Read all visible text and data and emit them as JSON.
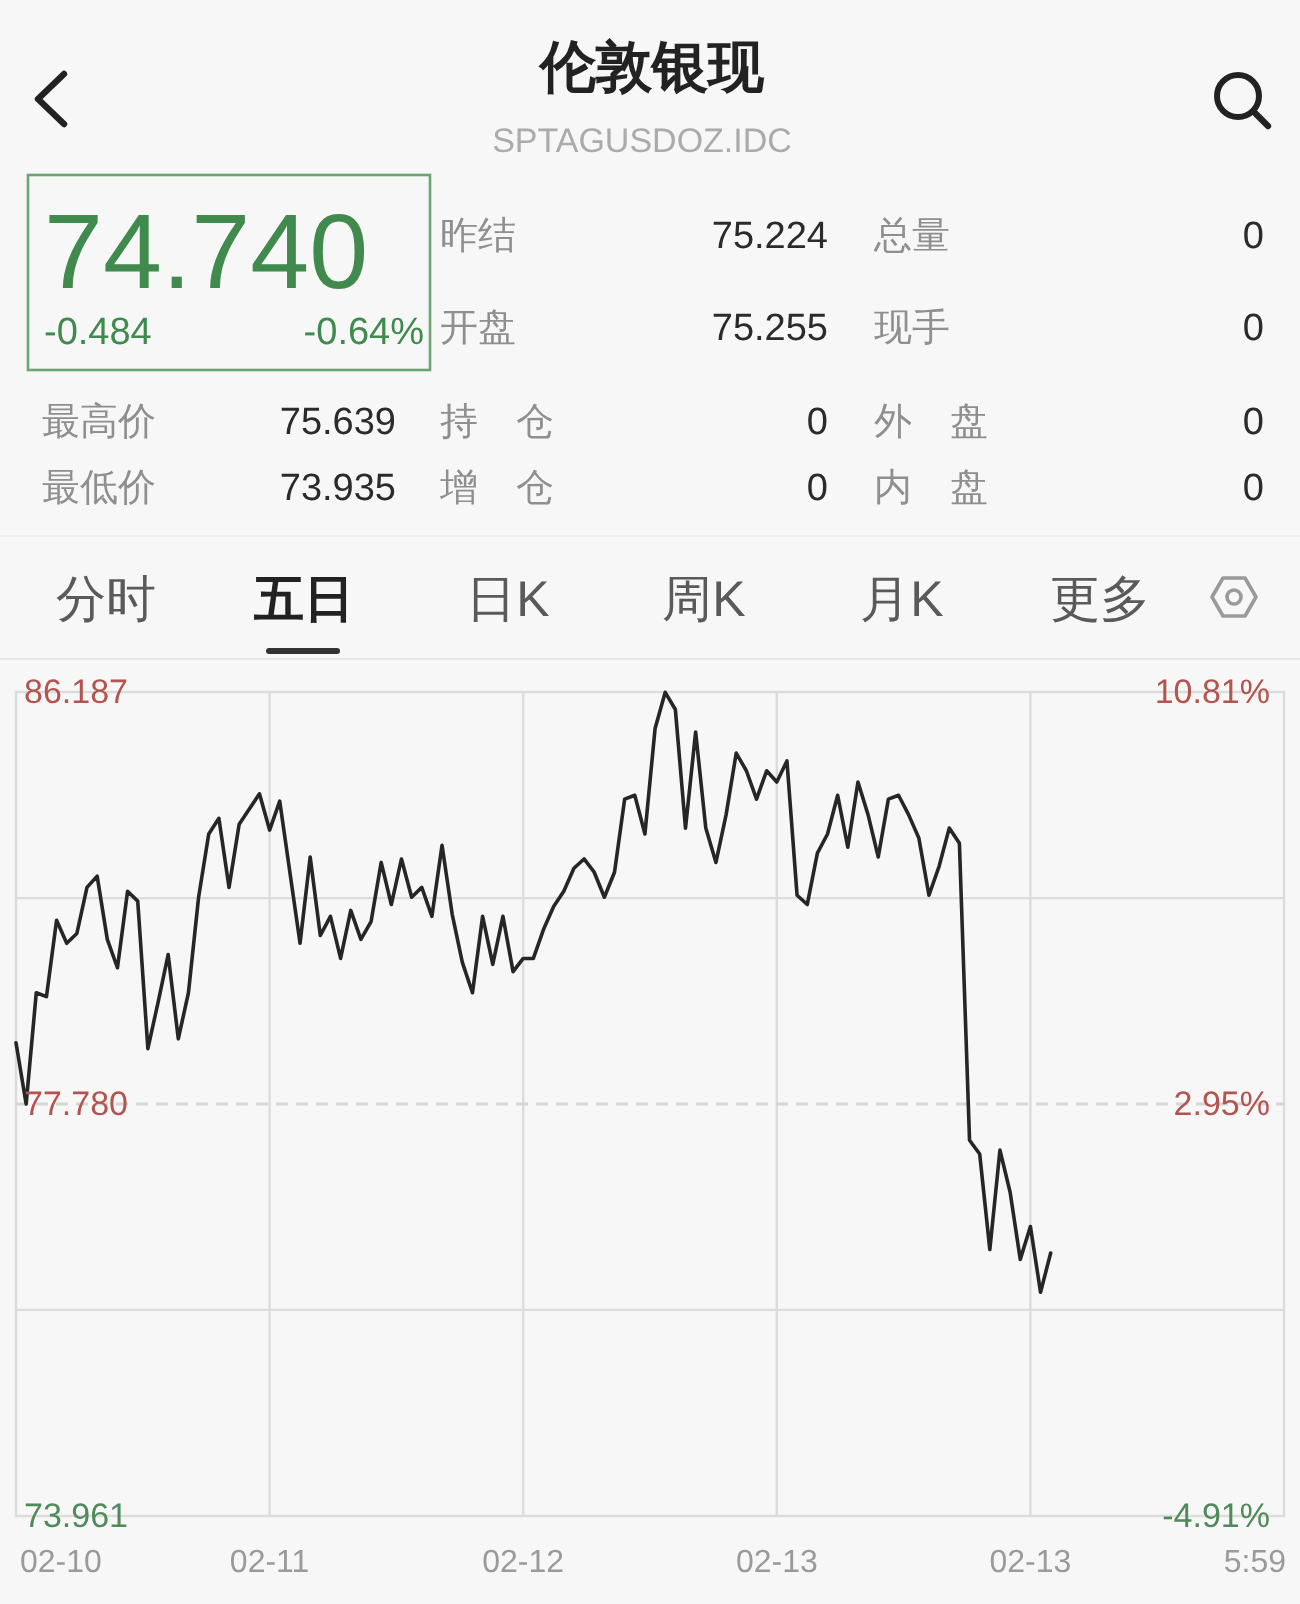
{
  "chart_data": [
    {
      "type": "other",
      "title": "伦敦银现",
      "subtitle": "SPTAGUSDOZ.IDC",
      "annotations": [
        "74.740",
        "-0.484",
        "-0.64%",
        "昨结",
        "75.224",
        "总量",
        "0",
        "开盘",
        "75.255",
        "现手",
        "0",
        "最高价",
        "75.639",
        "持　仓",
        "0",
        "外　盘",
        "0",
        "最低价",
        "73.935",
        "增　仓",
        "0",
        "内　盘",
        "0",
        "分时",
        "五日",
        "日K",
        "周K",
        "月K",
        "更多"
      ]
    },
    {
      "type": "line",
      "categories": [
        null,
        null,
        null,
        null,
        null,
        null,
        null,
        null,
        null,
        null,
        null,
        null,
        null,
        null,
        null,
        null,
        null,
        null,
        null,
        null,
        null,
        null,
        null,
        null,
        null,
        "02-11",
        null,
        null,
        null,
        null,
        null,
        null,
        null,
        null,
        null,
        null,
        null,
        null,
        null,
        null,
        null,
        null,
        null,
        null,
        null,
        null,
        null,
        null,
        null,
        null,
        "02-12",
        null,
        null,
        null,
        null,
        null,
        null,
        null,
        null,
        null,
        null,
        null,
        null,
        null,
        null,
        null,
        null,
        null,
        null,
        null,
        null,
        null,
        null,
        null,
        null,
        "02-13",
        null,
        null,
        null,
        null,
        null,
        null,
        null,
        null,
        null,
        null,
        null,
        null,
        null,
        null,
        null,
        null,
        null,
        null,
        null,
        null,
        null,
        null,
        null,
        null,
        "02-13",
        null,
        null,
        null,
        null,
        null,
        null,
        null,
        null,
        null,
        null,
        null,
        null,
        null,
        null,
        null,
        null,
        null,
        null,
        null,
        null,
        null,
        null,
        null,
        null,
        null
      ],
      "series": [
        {
          "color": "#262626",
          "values": [
            79.03,
            77.78,
            80.05,
            79.97,
            81.53,
            81.06,
            81.26,
            82.2,
            82.43,
            81.14,
            80.56,
            82.12,
            81.92,
            78.91,
            79.85,
            80.83,
            79.11,
            80.05,
            82.0,
            83.29,
            83.61,
            82.2,
            83.49,
            83.8,
            84.11,
            83.37,
            83.96,
            82.51,
            81.06,
            82.82,
            81.22,
            81.61,
            80.75,
            81.73,
            81.14,
            81.5,
            82.71,
            81.85,
            82.78,
            82.0,
            82.2,
            81.61,
            83.06,
            81.65,
            80.67,
            80.05,
            81.61,
            80.63,
            81.61,
            80.48,
            80.75,
            80.75,
            81.34,
            81.81,
            82.12,
            82.59,
            82.78,
            82.51,
            82.0,
            82.51,
            84.0,
            84.08,
            83.29,
            85.44,
            86.18,
            85.83,
            83.41,
            85.37,
            83.41,
            82.71,
            83.68,
            84.94,
            84.58,
            84.0,
            84.58,
            84.35,
            84.78,
            82.04,
            81.85,
            82.9,
            83.29,
            84.08,
            83.02,
            84.35,
            83.68,
            82.82,
            84.0,
            84.08,
            83.68,
            83.21,
            82.04,
            82.63,
            83.41,
            83.1,
            77.04,
            76.76,
            74.81,
            76.84,
            75.98,
            74.61,
            75.28,
            73.94,
            74.74,
            null,
            null,
            null,
            null,
            null,
            null,
            null,
            null,
            null,
            null,
            null,
            null,
            null,
            null,
            null,
            null,
            null,
            null,
            null,
            null,
            null,
            null,
            null
          ]
        }
      ],
      "ylim": [
        69.373,
        86.187
      ],
      "yticks": [
        {
          "value": 73.58,
          "label": null
        },
        {
          "value": 77.78,
          "label": "77.780"
        },
        {
          "value": 81.98,
          "label": null
        },
        86.187
      ],
      "y2lim": [
        -4.91,
        10.81
      ],
      "y2ticks": [
        {
          "value": -4.91,
          "label": "-4.91%"
        },
        {
          "value": 2.95,
          "label": "2.95%"
        },
        {
          "value": 10.81,
          "label": "10.81%"
        }
      ],
      "ref_lines": [
        {
          "axis": "y",
          "value": 77.78,
          "line_style": "dashed",
          "color": "#d6d6d6"
        }
      ],
      "grid": true,
      "annotations": [
        "73.961",
        "02-10",
        "5:59"
      ]
    }
  ]
}
